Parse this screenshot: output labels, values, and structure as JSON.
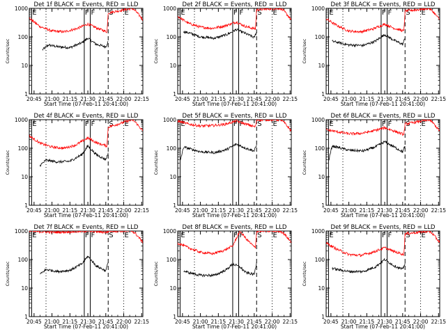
{
  "colors": {
    "background": "#ffffff",
    "frame": "#000000",
    "events": "#000000",
    "lld": "#ff0000"
  },
  "chart_data": [
    {
      "type": "line",
      "title": "Det 1f BLACK = Events, RED = LLD",
      "xlabel": "Start Time (07-Feb-11 20:41:00)",
      "ylabel": "Counts/sec",
      "y_scale": "log",
      "ylim": [
        1,
        1000
      ],
      "x_ticks": [
        "20:45",
        "21:00",
        "21:15",
        "21:30",
        "21:45",
        "22:00",
        "22:15"
      ],
      "y_ticks": [
        "1",
        "10",
        "100",
        "1000"
      ],
      "markers": [
        {
          "label": "E",
          "x": "20:43",
          "line": "solid"
        },
        {
          "label": "F",
          "x": "21:27",
          "line": "solid"
        },
        {
          "label": "F",
          "x": "21:32",
          "line": "solid"
        },
        {
          "label": "S",
          "x": "21:47",
          "line": "dashed"
        },
        {
          "label": "E",
          "x": "22:00",
          "line": "dotted"
        },
        {
          "label": "",
          "x": "20:55",
          "line": "dotted"
        }
      ],
      "series": [
        {
          "name": "Events",
          "x": [
            "20:52",
            "20:57",
            "21:05",
            "21:15",
            "21:25",
            "21:30",
            "21:37",
            "21:45",
            "21:47"
          ],
          "y": [
            35,
            52,
            45,
            42,
            62,
            90,
            55,
            45,
            70
          ]
        },
        {
          "name": "LLD",
          "x": [
            "20:41",
            "20:50",
            "21:00",
            "21:10",
            "21:20",
            "21:30",
            "21:38",
            "21:46",
            "21:47",
            "22:07",
            "22:10",
            "22:16"
          ],
          "y": [
            450,
            230,
            160,
            150,
            190,
            280,
            200,
            150,
            700,
            1000,
            800,
            400
          ]
        }
      ]
    },
    {
      "type": "line",
      "title": "Det 2f BLACK = Events, RED = LLD",
      "xlabel": "Start Time (07-Feb-11 20:41:00)",
      "ylabel": "Counts/sec",
      "y_scale": "log",
      "ylim": [
        1,
        1000
      ],
      "x_ticks": [
        "20:45",
        "21:00",
        "21:15",
        "21:30",
        "21:45",
        "22:00",
        "22:15"
      ],
      "y_ticks": [
        "1",
        "10",
        "100",
        "1000"
      ],
      "markers": [
        {
          "label": "E",
          "x": "20:43",
          "line": "solid"
        },
        {
          "label": "F",
          "x": "21:27",
          "line": "solid"
        },
        {
          "label": "F",
          "x": "21:32",
          "line": "solid"
        },
        {
          "label": "S",
          "x": "21:47",
          "line": "dashed"
        },
        {
          "label": "E",
          "x": "22:00",
          "line": "dotted"
        },
        {
          "label": "",
          "x": "20:55",
          "line": "dotted"
        }
      ],
      "series": [
        {
          "name": "Events",
          "x": [
            "20:46",
            "20:50",
            "21:00",
            "21:12",
            "21:22",
            "21:30",
            "21:38",
            "21:45",
            "21:47"
          ],
          "y": [
            150,
            140,
            100,
            90,
            120,
            180,
            130,
            95,
            150
          ]
        },
        {
          "name": "LLD",
          "x": [
            "20:41",
            "20:50",
            "21:00",
            "21:10",
            "21:20",
            "21:30",
            "21:38",
            "21:46",
            "21:47",
            "22:07",
            "22:10",
            "22:16"
          ],
          "y": [
            520,
            300,
            220,
            200,
            240,
            330,
            230,
            190,
            900,
            1000,
            800,
            400
          ]
        }
      ]
    },
    {
      "type": "line",
      "title": "Det 3f BLACK = Events, RED = LLD",
      "xlabel": "Start Time (07-Feb-11 20:41:00)",
      "ylabel": "Counts/sec",
      "y_scale": "log",
      "ylim": [
        1,
        1000
      ],
      "x_ticks": [
        "20:45",
        "21:00",
        "21:15",
        "21:30",
        "21:45",
        "22:00",
        "22:15"
      ],
      "y_ticks": [
        "1",
        "10",
        "100",
        "1000"
      ],
      "markers": [
        {
          "label": "E",
          "x": "20:43",
          "line": "solid"
        },
        {
          "label": "F",
          "x": "21:27",
          "line": "solid"
        },
        {
          "label": "F",
          "x": "21:32",
          "line": "solid"
        },
        {
          "label": "S",
          "x": "21:47",
          "line": "dashed"
        },
        {
          "label": "E",
          "x": "22:00",
          "line": "dotted"
        },
        {
          "label": "",
          "x": "20:55",
          "line": "dotted"
        }
      ],
      "series": [
        {
          "name": "Events",
          "x": [
            "20:46",
            "20:50",
            "21:00",
            "21:12",
            "21:22",
            "21:30",
            "21:38",
            "21:45",
            "21:47"
          ],
          "y": [
            70,
            65,
            52,
            50,
            70,
            120,
            75,
            55,
            90
          ]
        },
        {
          "name": "LLD",
          "x": [
            "20:41",
            "20:50",
            "21:00",
            "21:10",
            "21:20",
            "21:30",
            "21:38",
            "21:46",
            "21:47",
            "22:07",
            "22:10",
            "22:16"
          ],
          "y": [
            430,
            250,
            160,
            150,
            190,
            280,
            200,
            160,
            800,
            1000,
            800,
            400
          ]
        }
      ]
    },
    {
      "type": "line",
      "title": "Det 4f BLACK = Events, RED = LLD",
      "xlabel": "Start Time (07-Feb-11 20:41:00)",
      "ylabel": "Counts/sec",
      "y_scale": "log",
      "ylim": [
        1,
        1000
      ],
      "x_ticks": [
        "20:45",
        "21:00",
        "21:15",
        "21:30",
        "21:45",
        "22:00",
        "22:15"
      ],
      "y_ticks": [
        "1",
        "10",
        "100",
        "1000"
      ],
      "markers": [
        {
          "label": "E",
          "x": "20:43",
          "line": "solid"
        },
        {
          "label": "F",
          "x": "21:27",
          "line": "solid"
        },
        {
          "label": "F",
          "x": "21:32",
          "line": "solid"
        },
        {
          "label": "S",
          "x": "21:47",
          "line": "dashed"
        },
        {
          "label": "E",
          "x": "22:00",
          "line": "dotted"
        },
        {
          "label": "",
          "x": "20:55",
          "line": "dotted"
        }
      ],
      "series": [
        {
          "name": "Events",
          "x": [
            "20:50",
            "20:55",
            "21:05",
            "21:15",
            "21:25",
            "21:30",
            "21:37",
            "21:45",
            "21:47"
          ],
          "y": [
            25,
            38,
            33,
            35,
            60,
            120,
            60,
            40,
            70
          ]
        },
        {
          "name": "LLD",
          "x": [
            "20:41",
            "20:50",
            "21:00",
            "21:10",
            "21:20",
            "21:30",
            "21:38",
            "21:46",
            "21:47",
            "22:07",
            "22:10",
            "22:16"
          ],
          "y": [
            270,
            150,
            110,
            100,
            130,
            230,
            150,
            120,
            550,
            1000,
            800,
            400
          ]
        }
      ]
    },
    {
      "type": "line",
      "title": "Det 5f BLACK = Events, RED = LLD",
      "xlabel": "Start Time (07-Feb-11 20:41:00)",
      "ylabel": "Counts/sec",
      "y_scale": "log",
      "ylim": [
        1,
        1000
      ],
      "x_ticks": [
        "20:45",
        "21:00",
        "21:15",
        "21:30",
        "21:45",
        "22:00",
        "22:15"
      ],
      "y_ticks": [
        "1",
        "10",
        "100",
        "1000"
      ],
      "markers": [
        {
          "label": "E",
          "x": "20:43",
          "line": "solid"
        },
        {
          "label": "F",
          "x": "21:27",
          "line": "solid"
        },
        {
          "label": "F",
          "x": "21:32",
          "line": "solid"
        },
        {
          "label": "S",
          "x": "21:47",
          "line": "dashed"
        },
        {
          "label": "E",
          "x": "22:00",
          "line": "dotted"
        },
        {
          "label": "",
          "x": "20:55",
          "line": "dotted"
        }
      ],
      "series": [
        {
          "name": "Events",
          "x": [
            "20:43",
            "20:46",
            "21:00",
            "21:12",
            "21:22",
            "21:30",
            "21:38",
            "21:45",
            "21:47"
          ],
          "y": [
            35,
            110,
            75,
            70,
            90,
            140,
            100,
            80,
            130
          ]
        },
        {
          "name": "LLD",
          "x": [
            "20:41",
            "20:50",
            "21:00",
            "21:10",
            "21:20",
            "21:30",
            "21:38",
            "21:46",
            "21:47",
            "22:07",
            "22:10",
            "22:16"
          ],
          "y": [
            900,
            700,
            600,
            620,
            680,
            900,
            700,
            560,
            1000,
            1000,
            800,
            400
          ]
        }
      ]
    },
    {
      "type": "line",
      "title": "Det 6f BLACK = Events, RED = LLD",
      "xlabel": "Start Time (07-Feb-11 20:41:00)",
      "ylabel": "Counts/sec",
      "y_scale": "log",
      "ylim": [
        1,
        1000
      ],
      "x_ticks": [
        "20:45",
        "21:00",
        "21:15",
        "21:30",
        "21:45",
        "22:00",
        "22:15"
      ],
      "y_ticks": [
        "1",
        "10",
        "100",
        "1000"
      ],
      "markers": [
        {
          "label": "E",
          "x": "20:43",
          "line": "solid"
        },
        {
          "label": "F",
          "x": "21:27",
          "line": "solid"
        },
        {
          "label": "F",
          "x": "21:32",
          "line": "solid"
        },
        {
          "label": "S",
          "x": "21:47",
          "line": "dashed"
        },
        {
          "label": "E",
          "x": "22:00",
          "line": "dotted"
        },
        {
          "label": "",
          "x": "20:55",
          "line": "dotted"
        }
      ],
      "series": [
        {
          "name": "Events",
          "x": [
            "20:43",
            "20:46",
            "21:00",
            "21:12",
            "21:22",
            "21:30",
            "21:38",
            "21:45",
            "21:47"
          ],
          "y": [
            35,
            120,
            85,
            80,
            110,
            170,
            110,
            75,
            120
          ]
        },
        {
          "name": "LLD",
          "x": [
            "20:41",
            "20:50",
            "21:00",
            "21:10",
            "21:20",
            "21:30",
            "21:38",
            "21:46",
            "21:47",
            "22:07",
            "22:10",
            "22:16"
          ],
          "y": [
            440,
            380,
            320,
            330,
            400,
            520,
            400,
            300,
            700,
            1000,
            800,
            400
          ]
        }
      ]
    },
    {
      "type": "line",
      "title": "Det 7f BLACK = Events, RED = LLD",
      "xlabel": "Start Time (07-Feb-11 20:41:00)",
      "ylabel": "Counts/sec",
      "y_scale": "log",
      "ylim": [
        1,
        1000
      ],
      "x_ticks": [
        "20:45",
        "21:00",
        "21:15",
        "21:30",
        "21:45",
        "22:00",
        "22:15"
      ],
      "y_ticks": [
        "1",
        "10",
        "100",
        "1000"
      ],
      "markers": [
        {
          "label": "E",
          "x": "20:43",
          "line": "solid"
        },
        {
          "label": "F",
          "x": "21:27",
          "line": "solid"
        },
        {
          "label": "F",
          "x": "21:32",
          "line": "solid"
        },
        {
          "label": "S",
          "x": "21:47",
          "line": "dashed"
        },
        {
          "label": "E",
          "x": "22:00",
          "line": "dotted"
        },
        {
          "label": "",
          "x": "20:55",
          "line": "dotted"
        }
      ],
      "series": [
        {
          "name": "Events",
          "x": [
            "20:50",
            "20:55",
            "21:05",
            "21:15",
            "21:25",
            "21:30",
            "21:37",
            "21:45",
            "21:47"
          ],
          "y": [
            30,
            45,
            38,
            42,
            70,
            130,
            60,
            40,
            80
          ]
        },
        {
          "name": "LLD",
          "x": [
            "20:41",
            "20:50",
            "21:00",
            "21:10",
            "21:20",
            "21:30",
            "21:38",
            "21:46",
            "21:47",
            "22:07",
            "22:10",
            "22:16"
          ],
          "y": [
            1000,
            950,
            900,
            920,
            950,
            1000,
            950,
            900,
            1000,
            1000,
            800,
            400
          ]
        }
      ]
    },
    {
      "type": "line",
      "title": "Det 8f BLACK = Events, RED = LLD",
      "xlabel": "Start Time (07-Feb-11 20:41:00)",
      "ylabel": "Counts/sec",
      "y_scale": "log",
      "ylim": [
        1,
        1000
      ],
      "x_ticks": [
        "20:45",
        "21:00",
        "21:15",
        "21:30",
        "21:45",
        "22:00",
        "22:15"
      ],
      "y_ticks": [
        "1",
        "10",
        "100",
        "1000"
      ],
      "markers": [
        {
          "label": "E",
          "x": "20:43",
          "line": "solid"
        },
        {
          "label": "F",
          "x": "21:27",
          "line": "solid"
        },
        {
          "label": "F",
          "x": "21:32",
          "line": "solid"
        },
        {
          "label": "S",
          "x": "21:47",
          "line": "dashed"
        },
        {
          "label": "E",
          "x": "22:00",
          "line": "dotted"
        },
        {
          "label": "",
          "x": "20:55",
          "line": "dotted"
        }
      ],
      "series": [
        {
          "name": "Events",
          "x": [
            "20:46",
            "20:50",
            "21:00",
            "21:12",
            "21:22",
            "21:27",
            "21:33",
            "21:38",
            "21:45",
            "21:47"
          ],
          "y": [
            40,
            35,
            28,
            28,
            45,
            70,
            55,
            35,
            30,
            80
          ]
        },
        {
          "name": "LLD",
          "x": [
            "20:41",
            "20:50",
            "21:00",
            "21:10",
            "21:20",
            "21:27",
            "21:33",
            "21:38",
            "21:46",
            "21:47",
            "22:07",
            "22:10",
            "22:16"
          ],
          "y": [
            380,
            260,
            180,
            160,
            210,
            300,
            1000,
            550,
            250,
            1000,
            1000,
            800,
            400
          ]
        }
      ]
    },
    {
      "type": "line",
      "title": "Det 9f BLACK = Events, RED = LLD",
      "xlabel": "Start Time (07-Feb-11 20:41:00)",
      "ylabel": "Counts/sec",
      "y_scale": "log",
      "ylim": [
        1,
        1000
      ],
      "x_ticks": [
        "20:45",
        "21:00",
        "21:15",
        "21:30",
        "21:45",
        "22:00",
        "22:15"
      ],
      "y_ticks": [
        "1",
        "10",
        "100",
        "1000"
      ],
      "markers": [
        {
          "label": "E",
          "x": "20:43",
          "line": "solid"
        },
        {
          "label": "F",
          "x": "21:27",
          "line": "solid"
        },
        {
          "label": "F",
          "x": "21:32",
          "line": "solid"
        },
        {
          "label": "S",
          "x": "21:47",
          "line": "dashed"
        },
        {
          "label": "E",
          "x": "22:00",
          "line": "dotted"
        },
        {
          "label": "",
          "x": "20:55",
          "line": "dotted"
        }
      ],
      "series": [
        {
          "name": "Events",
          "x": [
            "20:46",
            "20:50",
            "21:00",
            "21:12",
            "21:22",
            "21:30",
            "21:38",
            "21:45",
            "21:47"
          ],
          "y": [
            50,
            45,
            38,
            38,
            55,
            100,
            60,
            45,
            75
          ]
        },
        {
          "name": "LLD",
          "x": [
            "20:41",
            "20:50",
            "21:00",
            "21:10",
            "21:20",
            "21:30",
            "21:38",
            "21:46",
            "21:47",
            "22:07",
            "22:10",
            "22:16"
          ],
          "y": [
            380,
            230,
            150,
            140,
            180,
            260,
            190,
            150,
            800,
            1000,
            800,
            400
          ]
        }
      ]
    }
  ]
}
